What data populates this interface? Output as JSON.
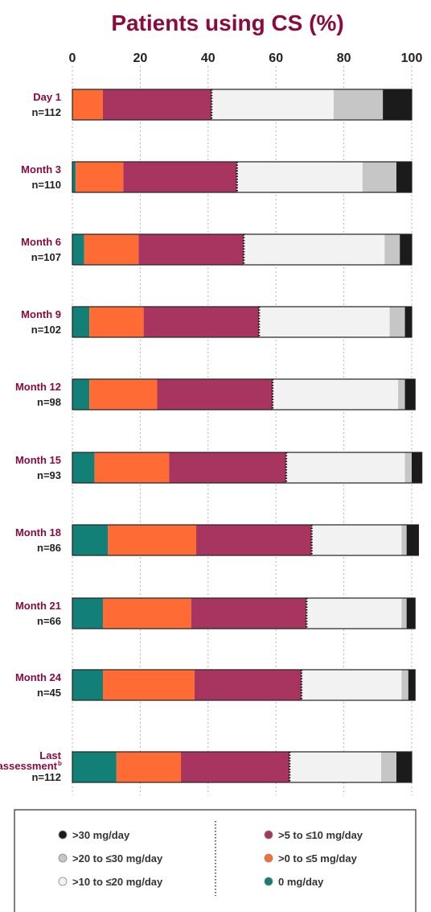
{
  "chart_data": {
    "type": "bar",
    "orientation": "horizontal",
    "stacked": true,
    "title": "Patients using CS (%)",
    "xlim": [
      0,
      100
    ],
    "xticks": [
      0,
      20,
      40,
      60,
      80,
      100
    ],
    "grid": "vertical dotted",
    "legend_position": "bottom",
    "rows": [
      {
        "label": "Day 1",
        "n": "n=112"
      },
      {
        "label": "Month 3",
        "n": "n=110"
      },
      {
        "label": "Month 6",
        "n": "n=107"
      },
      {
        "label": "Month 9",
        "n": "n=102"
      },
      {
        "label": "Month 12",
        "n": "n=98"
      },
      {
        "label": "Month 15",
        "n": "n=93"
      },
      {
        "label": "Month 18",
        "n": "n=86"
      },
      {
        "label": "Month 21",
        "n": "n=66"
      },
      {
        "label": "Month 24",
        "n": "n=45"
      },
      {
        "label": "Last",
        "label2": "assessment",
        "sup": "b",
        "n": "n=112"
      }
    ],
    "series": [
      {
        "name": "0 mg/day",
        "color": "#138077",
        "values": [
          0,
          1,
          3.5,
          5,
          5,
          6.5,
          10.5,
          9,
          9,
          13
        ]
      },
      {
        "name": ">0 to ≤5 mg/day",
        "color": "#ff6b35",
        "values": [
          9,
          14,
          16,
          16,
          20,
          22,
          26,
          26,
          27,
          19
        ]
      },
      {
        "name": ">5 to ≤10 mg/day",
        "color": "#a83560",
        "values": [
          32,
          33.5,
          31,
          34,
          34,
          34.5,
          34,
          34,
          31.5,
          32
        ]
      },
      {
        "name": ">10 to ≤20 mg/day",
        "color": "#f2f2f2",
        "values": [
          36,
          37,
          41.5,
          38.5,
          37,
          35,
          26.5,
          28,
          29.5,
          27
        ]
      },
      {
        "name": ">20 to ≤30 mg/day",
        "color": "#c6c6c6",
        "values": [
          14.5,
          10,
          4.5,
          4.5,
          2,
          2,
          1.5,
          1.5,
          2,
          4.5
        ]
      },
      {
        "name": ">30 mg/day",
        "color": "#1b1b1b",
        "values": [
          8.5,
          4.5,
          3.5,
          2,
          3,
          3,
          3.5,
          2.5,
          2,
          4.5
        ]
      }
    ]
  },
  "legend": {
    "left": [
      {
        "label": ">30 mg/day",
        "color": "#1b1b1b"
      },
      {
        "label": ">20 to ≤30 mg/day",
        "color": "#c6c6c6"
      },
      {
        "label": ">10 to ≤20 mg/day",
        "color": "#f2f2f2"
      }
    ],
    "right": [
      {
        "label": ">5 to ≤10 mg/day",
        "color": "#a83560"
      },
      {
        "label": ">0 to ≤5 mg/day",
        "color": "#ff6b35"
      },
      {
        "label": "0 mg/day",
        "color": "#138077"
      }
    ]
  }
}
